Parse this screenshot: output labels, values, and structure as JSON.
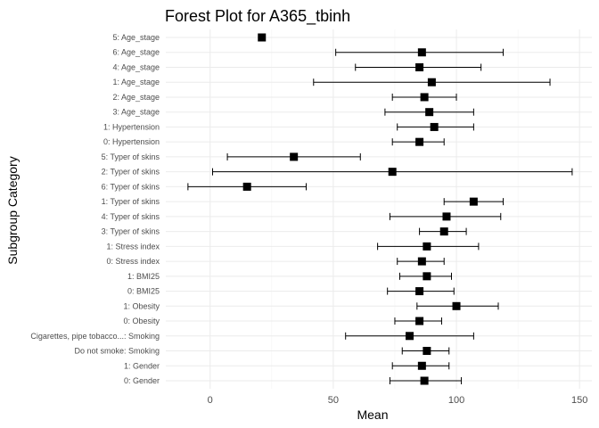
{
  "chart_data": {
    "type": "forest",
    "title": "Forest Plot for A365_tbinh",
    "xlabel": "Mean",
    "ylabel": "Subgroup Category",
    "xlim": [
      -18,
      155
    ],
    "x_ticks": [
      0,
      50,
      100,
      150
    ],
    "grid": true,
    "rows": [
      {
        "label": "5: Age_stage",
        "mean": 21,
        "lower": null,
        "upper": null
      },
      {
        "label": "6: Age_stage",
        "mean": 86,
        "lower": 51,
        "upper": 119
      },
      {
        "label": "4: Age_stage",
        "mean": 85,
        "lower": 59,
        "upper": 110
      },
      {
        "label": "1: Age_stage",
        "mean": 90,
        "lower": 42,
        "upper": 138
      },
      {
        "label": "2: Age_stage",
        "mean": 87,
        "lower": 74,
        "upper": 100
      },
      {
        "label": "3: Age_stage",
        "mean": 89,
        "lower": 71,
        "upper": 107
      },
      {
        "label": "1: Hypertension",
        "mean": 91,
        "lower": 76,
        "upper": 107
      },
      {
        "label": "0: Hypertension",
        "mean": 85,
        "lower": 74,
        "upper": 95
      },
      {
        "label": "5: Typer of skins",
        "mean": 34,
        "lower": 7,
        "upper": 61
      },
      {
        "label": "2: Typer of skins",
        "mean": 74,
        "lower": 1,
        "upper": 147
      },
      {
        "label": "6: Typer of skins",
        "mean": 15,
        "lower": -9,
        "upper": 39
      },
      {
        "label": "1: Typer of skins",
        "mean": 107,
        "lower": 95,
        "upper": 119
      },
      {
        "label": "4: Typer of skins",
        "mean": 96,
        "lower": 73,
        "upper": 118
      },
      {
        "label": "3: Typer of skins",
        "mean": 95,
        "lower": 85,
        "upper": 104
      },
      {
        "label": "1: Stress index",
        "mean": 88,
        "lower": 68,
        "upper": 109
      },
      {
        "label": "0: Stress index",
        "mean": 86,
        "lower": 76,
        "upper": 95
      },
      {
        "label": "1: BMI25",
        "mean": 88,
        "lower": 77,
        "upper": 98
      },
      {
        "label": "0: BMI25",
        "mean": 85,
        "lower": 72,
        "upper": 99
      },
      {
        "label": "1: Obesity",
        "mean": 100,
        "lower": 84,
        "upper": 117
      },
      {
        "label": "0: Obesity",
        "mean": 85,
        "lower": 75,
        "upper": 94
      },
      {
        "label": "Cigarettes, pipe tobacco...: Smoking",
        "mean": 81,
        "lower": 55,
        "upper": 107
      },
      {
        "label": "Do not smoke: Smoking",
        "mean": 88,
        "lower": 78,
        "upper": 97
      },
      {
        "label": "1: Gender",
        "mean": 86,
        "lower": 74,
        "upper": 97
      },
      {
        "label": "0: Gender",
        "mean": 87,
        "lower": 73,
        "upper": 102
      }
    ]
  }
}
